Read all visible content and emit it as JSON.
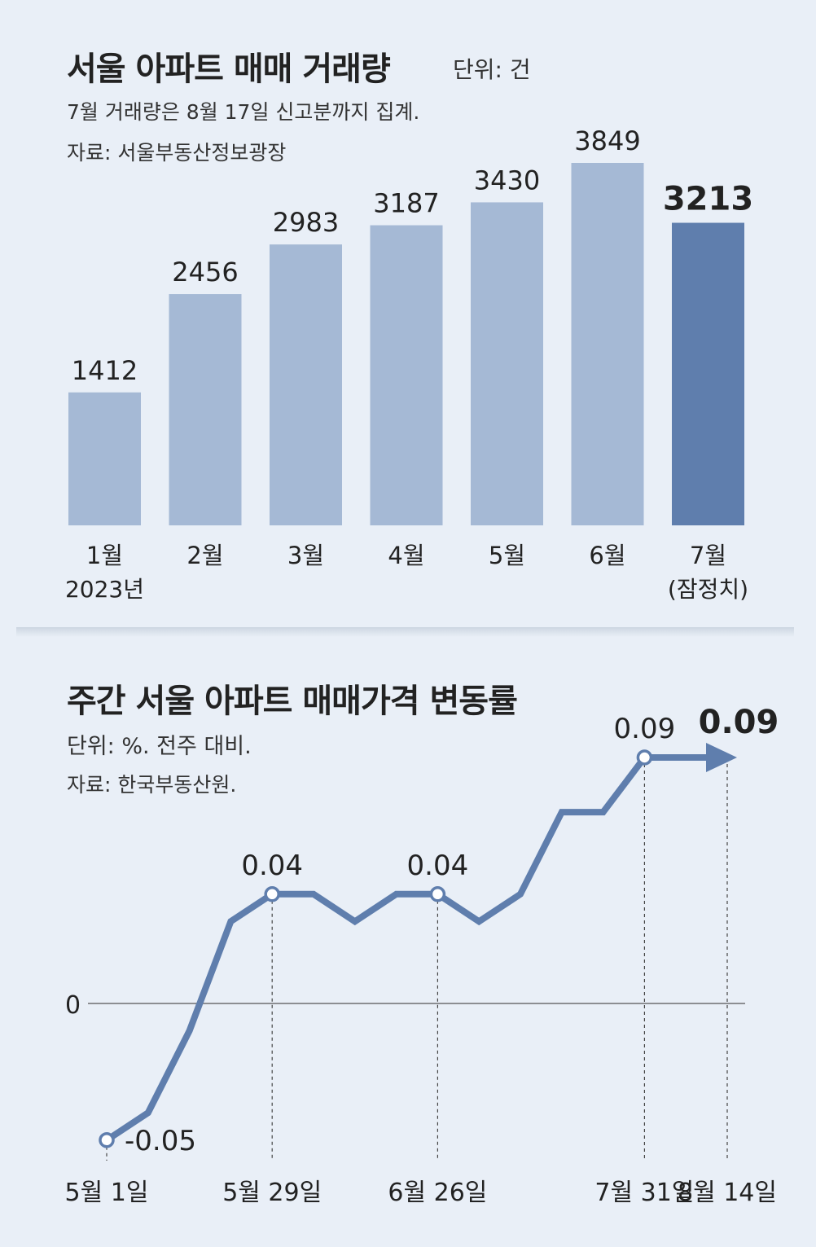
{
  "charts": {
    "top": {
      "title": "서울 아파트 매매 거래량",
      "unit": "단위: 건",
      "note": "7월 거래량은 8월 17일 신고분까지 집계.",
      "source": "자료: 서울부동산정보광장"
    },
    "bottom": {
      "title": "주간 서울 아파트 매매가격 변동률",
      "unit": "단위: %. 전주 대비.",
      "source": "자료: 한국부동산원."
    }
  },
  "colors": {
    "bar": "#a5b9d5",
    "bar_highlight": "#5f7ead",
    "line": "#5f7ead",
    "background": "#e9eff7"
  },
  "chart_data": [
    {
      "type": "bar",
      "title": "서울 아파트 매매 거래량",
      "unit": "단위: 건",
      "categories": [
        "1월",
        "2월",
        "3월",
        "4월",
        "5월",
        "6월",
        "7월"
      ],
      "sublabels": [
        "2023년",
        "",
        "",
        "",
        "",
        "",
        "(잠정치)"
      ],
      "values": [
        1412,
        2456,
        2983,
        3187,
        3430,
        3849,
        3213
      ],
      "value_labels": [
        "1412",
        "2456",
        "2983",
        "3187",
        "3430",
        "3849",
        "3213"
      ],
      "highlight_index": 6,
      "ylim": [
        0,
        3849
      ]
    },
    {
      "type": "line",
      "title": "주간 서울 아파트 매매가격 변동률",
      "unit": "단위: %. 전주 대비.",
      "y": [
        -0.05,
        -0.04,
        -0.01,
        0.03,
        0.04,
        0.04,
        0.03,
        0.04,
        0.04,
        0.03,
        0.04,
        0.07,
        0.07,
        0.09,
        0.09,
        0.09
      ],
      "x_tick_labels": [
        {
          "index": 0,
          "label": "5월 1일"
        },
        {
          "index": 4,
          "label": "5월 29일"
        },
        {
          "index": 8,
          "label": "6월 26일"
        },
        {
          "index": 13,
          "label": "7월 31일"
        },
        {
          "index": 15,
          "label": "8월 14일"
        }
      ],
      "point_labels": [
        {
          "index": 0,
          "label": "-0.05"
        },
        {
          "index": 4,
          "label": "0.04"
        },
        {
          "index": 8,
          "label": "0.04"
        },
        {
          "index": 13,
          "label": "0.09"
        },
        {
          "index": 15,
          "label": "0.09",
          "bold": true
        }
      ],
      "zero_label": "0",
      "ylim": [
        -0.05,
        0.09
      ]
    }
  ]
}
